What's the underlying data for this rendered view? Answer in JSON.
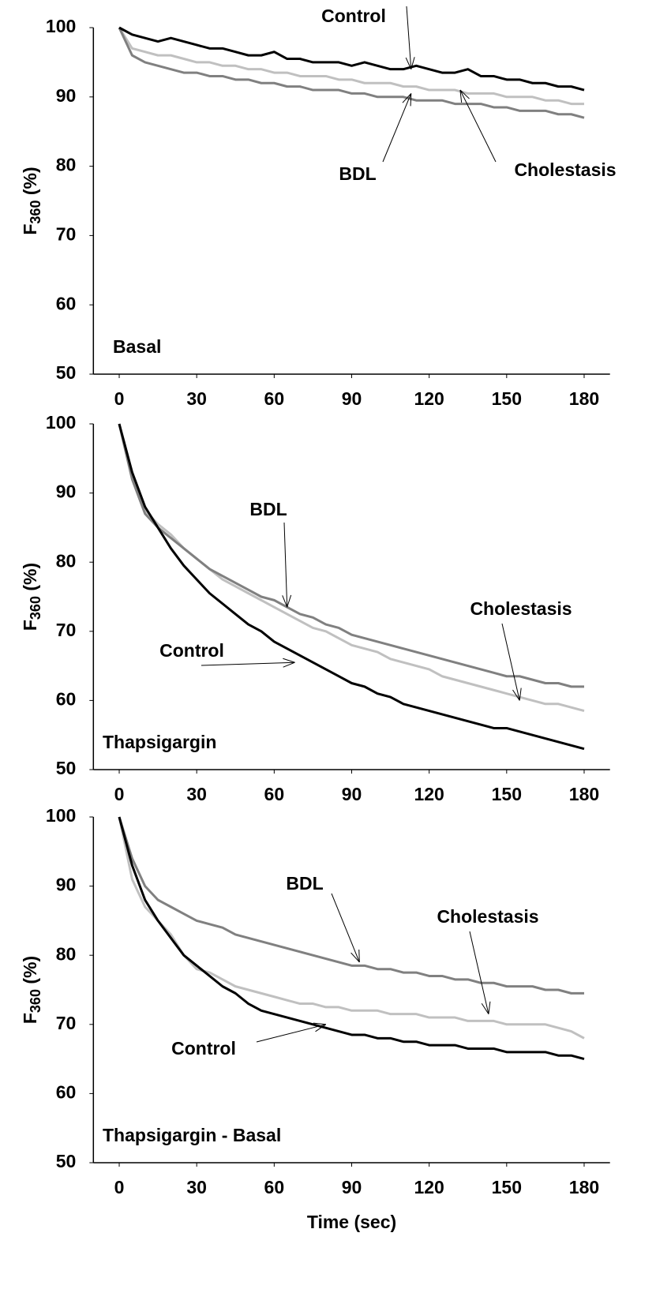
{
  "chart_data": [
    {
      "type": "line",
      "panel_label": "Basal",
      "ylabel": {
        "base": "F",
        "subscript": "360",
        "rest": " (%)"
      },
      "xlim": [
        -10,
        190
      ],
      "xticks": [
        0,
        30,
        60,
        90,
        120,
        150,
        180
      ],
      "ylim": [
        50,
        100
      ],
      "yticks": [
        50,
        60,
        70,
        80,
        90,
        100
      ],
      "x": [
        0,
        5,
        10,
        15,
        20,
        25,
        30,
        35,
        40,
        45,
        50,
        55,
        60,
        65,
        70,
        75,
        80,
        85,
        90,
        95,
        100,
        105,
        110,
        115,
        120,
        125,
        130,
        135,
        140,
        145,
        150,
        155,
        160,
        165,
        170,
        175,
        180
      ],
      "series": [
        {
          "color": "#000000",
          "values": [
            100,
            99,
            98.5,
            98,
            98.5,
            98,
            97.5,
            97,
            97,
            96.5,
            96,
            96,
            96.5,
            95.5,
            95.5,
            95,
            95,
            95,
            94.5,
            95,
            94.5,
            94,
            94,
            94.5,
            94,
            93.5,
            93.5,
            94,
            93,
            93,
            92.5,
            92.5,
            92,
            92,
            91.5,
            91.5,
            91
          ]
        },
        {
          "color": "#808080",
          "values": [
            100,
            96,
            95,
            94.5,
            94,
            93.5,
            93.5,
            93,
            93,
            92.5,
            92.5,
            92,
            92,
            91.5,
            91.5,
            91,
            91,
            91,
            90.5,
            90.5,
            90,
            90,
            90,
            89.5,
            89.5,
            89.5,
            89,
            89,
            89,
            88.5,
            88.5,
            88,
            88,
            88,
            87.5,
            87.5,
            87
          ]
        },
        {
          "color": "#c0c0c0",
          "values": [
            100,
            97,
            96.5,
            96,
            96,
            95.5,
            95,
            95,
            94.5,
            94.5,
            94,
            94,
            93.5,
            93.5,
            93,
            93,
            93,
            92.5,
            92.5,
            92,
            92,
            92,
            91.5,
            91.5,
            91,
            91,
            91,
            90.5,
            90.5,
            90.5,
            90,
            90,
            90,
            89.5,
            89.5,
            89,
            89
          ]
        }
      ],
      "annotations": [
        {
          "text": "Control",
          "x": 113,
          "y": 94
        },
        {
          "text": "BDL",
          "x": 113,
          "y": 90.5
        },
        {
          "text": "Cholestasis",
          "x": 132,
          "y": 91
        }
      ]
    },
    {
      "type": "line",
      "panel_label": "Thapsigargin",
      "ylabel": {
        "base": "F",
        "subscript": "360",
        "rest": " (%)"
      },
      "xlim": [
        -10,
        190
      ],
      "xticks": [
        0,
        30,
        60,
        90,
        120,
        150,
        180
      ],
      "ylim": [
        50,
        100
      ],
      "yticks": [
        50,
        60,
        70,
        80,
        90,
        100
      ],
      "x": [
        0,
        5,
        10,
        15,
        20,
        25,
        30,
        35,
        40,
        45,
        50,
        55,
        60,
        65,
        70,
        75,
        80,
        85,
        90,
        95,
        100,
        105,
        110,
        115,
        120,
        125,
        130,
        135,
        140,
        145,
        150,
        155,
        160,
        165,
        170,
        175,
        180
      ],
      "series": [
        {
          "color": "#000000",
          "values": [
            100,
            93,
            88,
            85,
            82,
            79.5,
            77.5,
            75.5,
            74,
            72.5,
            71,
            70,
            68.5,
            67.5,
            66.5,
            65.5,
            64.5,
            63.5,
            62.5,
            62,
            61,
            60.5,
            59.5,
            59,
            58.5,
            58,
            57.5,
            57,
            56.5,
            56,
            56,
            55.5,
            55,
            54.5,
            54,
            53.5,
            53
          ]
        },
        {
          "color": "#808080",
          "values": [
            100,
            92,
            87,
            85,
            83.5,
            82,
            80.5,
            79,
            78,
            77,
            76,
            75,
            74.5,
            73.5,
            72.5,
            72,
            71,
            70.5,
            69.5,
            69,
            68.5,
            68,
            67.5,
            67,
            66.5,
            66,
            65.5,
            65,
            64.5,
            64,
            63.5,
            63.5,
            63,
            62.5,
            62.5,
            62,
            62
          ]
        },
        {
          "color": "#c0c0c0",
          "values": [
            100,
            92,
            87.5,
            85.5,
            84,
            82,
            80.5,
            79,
            77.5,
            76.5,
            75.5,
            74.5,
            73.5,
            72.5,
            71.5,
            70.5,
            70,
            69,
            68,
            67.5,
            67,
            66,
            65.5,
            65,
            64.5,
            63.5,
            63,
            62.5,
            62,
            61.5,
            61,
            60.5,
            60,
            59.5,
            59.5,
            59,
            58.5
          ]
        }
      ],
      "annotations": [
        {
          "text": "BDL",
          "x": 65,
          "y": 73.5
        },
        {
          "text": "Control",
          "x": 68,
          "y": 65.5
        },
        {
          "text": "Cholestasis",
          "x": 155,
          "y": 60
        }
      ]
    },
    {
      "type": "line",
      "panel_label": "Thapsigargin - Basal",
      "ylabel": {
        "base": "F",
        "subscript": "360",
        "rest": " (%)"
      },
      "xlabel": "Time (sec)",
      "xlim": [
        -10,
        190
      ],
      "xticks": [
        0,
        30,
        60,
        90,
        120,
        150,
        180
      ],
      "ylim": [
        50,
        100
      ],
      "yticks": [
        50,
        60,
        70,
        80,
        90,
        100
      ],
      "x": [
        0,
        5,
        10,
        15,
        20,
        25,
        30,
        35,
        40,
        45,
        50,
        55,
        60,
        65,
        70,
        75,
        80,
        85,
        90,
        95,
        100,
        105,
        110,
        115,
        120,
        125,
        130,
        135,
        140,
        145,
        150,
        155,
        160,
        165,
        170,
        175,
        180
      ],
      "series": [
        {
          "color": "#000000",
          "values": [
            100,
            93,
            88,
            85,
            82.5,
            80,
            78.5,
            77,
            75.5,
            74.5,
            73,
            72,
            71.5,
            71,
            70.5,
            70,
            69.5,
            69,
            68.5,
            68.5,
            68,
            68,
            67.5,
            67.5,
            67,
            67,
            67,
            66.5,
            66.5,
            66.5,
            66,
            66,
            66,
            66,
            65.5,
            65.5,
            65
          ]
        },
        {
          "color": "#808080",
          "values": [
            100,
            94,
            90,
            88,
            87,
            86,
            85,
            84.5,
            84,
            83,
            82.5,
            82,
            81.5,
            81,
            80.5,
            80,
            79.5,
            79,
            78.5,
            78.5,
            78,
            78,
            77.5,
            77.5,
            77,
            77,
            76.5,
            76.5,
            76,
            76,
            75.5,
            75.5,
            75.5,
            75,
            75,
            74.5,
            74.5
          ]
        },
        {
          "color": "#c0c0c0",
          "values": [
            100,
            91,
            87,
            85,
            83,
            80,
            78,
            77.5,
            76.5,
            75.5,
            75,
            74.5,
            74,
            73.5,
            73,
            73,
            72.5,
            72.5,
            72,
            72,
            72,
            71.5,
            71.5,
            71.5,
            71,
            71,
            71,
            70.5,
            70.5,
            70.5,
            70,
            70,
            70,
            70,
            69.5,
            69,
            68
          ]
        }
      ],
      "annotations": [
        {
          "text": "BDL",
          "x": 93,
          "y": 79
        },
        {
          "text": "Cholestasis",
          "x": 143,
          "y": 71.5
        },
        {
          "text": "Control",
          "x": 80,
          "y": 70
        }
      ]
    }
  ]
}
